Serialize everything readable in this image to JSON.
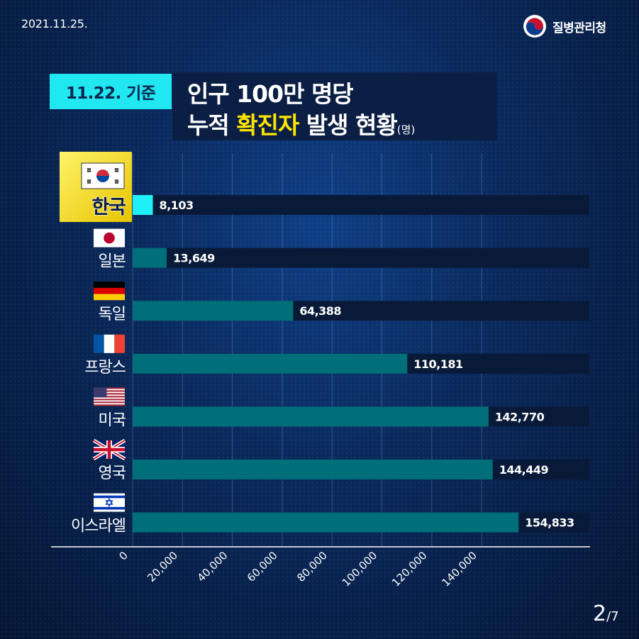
{
  "header": {
    "date": "2021.11.25.",
    "org_name": "질병관리청",
    "logo_icon": "taegeuk-logo-icon"
  },
  "title": {
    "badge": "11.22. 기준",
    "line1": "인구 100만 명당",
    "line2_pre": "누적 ",
    "line2_highlight": "확진자",
    "line2_post": " 발생 현황",
    "line2_unit": "(명)"
  },
  "page": {
    "current": "2",
    "total": "/7"
  },
  "chart_data": {
    "type": "bar",
    "orientation": "horizontal",
    "categories": [
      "한국",
      "일본",
      "독일",
      "프랑스",
      "미국",
      "영국",
      "이스라엘"
    ],
    "flags": [
      "korea-flag-icon",
      "japan-flag-icon",
      "germany-flag-icon",
      "france-flag-icon",
      "usa-flag-icon",
      "uk-flag-icon",
      "israel-flag-icon"
    ],
    "values": [
      8103,
      13649,
      64388,
      110181,
      142770,
      144449,
      154833
    ],
    "value_labels": [
      "8,103",
      "13,649",
      "64,388",
      "110,181",
      "142,770",
      "144,449",
      "154,833"
    ],
    "highlight_category": "한국",
    "x_ticks": [
      "0",
      "20,000",
      "40,000",
      "60,000",
      "80,000",
      "100,000",
      "120,000",
      "140,000"
    ],
    "x_tick_values": [
      0,
      20000,
      40000,
      60000,
      80000,
      100000,
      120000,
      140000
    ],
    "xlim": [
      0,
      183000
    ],
    "grid": true,
    "colors": {
      "bar": "#006f7a",
      "bar_highlight": "#1ff0f8",
      "track": "#081a38",
      "highlight_label_bg": "#ffe600"
    }
  }
}
